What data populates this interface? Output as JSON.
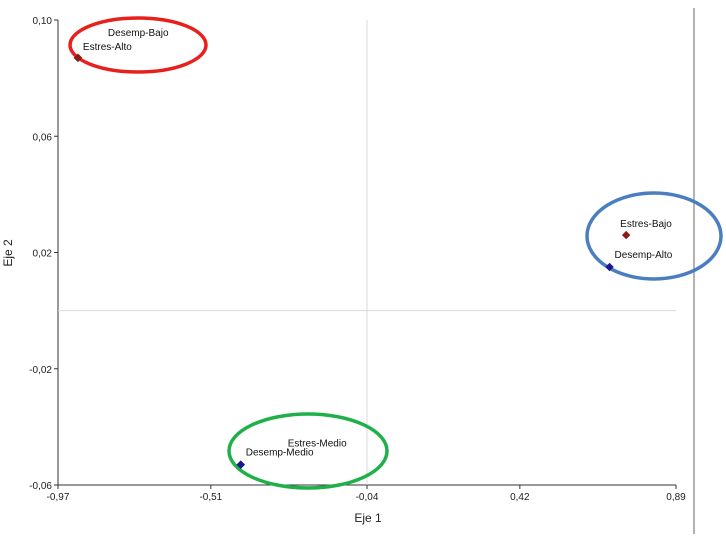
{
  "chart_data": {
    "type": "scatter",
    "xlabel": "Eje 1",
    "ylabel": "Eje 2",
    "xlim": [
      -0.97,
      0.89
    ],
    "ylim": [
      -0.06,
      0.1
    ],
    "x_ticks": [
      "-0,97",
      "-0,51",
      "-0,04",
      "0,42",
      "0,89"
    ],
    "x_tick_values": [
      -0.97,
      -0.51,
      -0.04,
      0.42,
      0.89
    ],
    "y_ticks": [
      "-0,06",
      "-0,02",
      "0,02",
      "0,06",
      "0,10"
    ],
    "y_tick_values": [
      -0.06,
      -0.02,
      0.02,
      0.06,
      0.1
    ],
    "reference_lines": {
      "x": -0.04,
      "y": 0.0
    },
    "grid": false,
    "points": [
      {
        "label": "Desemp-Bajo",
        "x": -0.91,
        "y": 0.087,
        "color": "#8B1A1A"
      },
      {
        "label": "Estres-Alto",
        "x": -0.91,
        "y": 0.087,
        "color": "#8B1A1A"
      },
      {
        "label": "Estres-Bajo",
        "x": 0.74,
        "y": 0.026,
        "color": "#8B1A1A"
      },
      {
        "label": "Desemp-Alto",
        "x": 0.69,
        "y": 0.015,
        "color": "#1a1a8c"
      },
      {
        "label": "Estres-Medio",
        "x": -0.42,
        "y": -0.053,
        "color": "#1a1a8c"
      },
      {
        "label": "Desemp-Medio",
        "x": -0.42,
        "y": -0.053,
        "color": "#1a1a8c"
      }
    ],
    "highlight_ellipses": [
      {
        "group": [
          "Desemp-Bajo",
          "Estres-Alto"
        ],
        "color": "#e8201c"
      },
      {
        "group": [
          "Estres-Bajo",
          "Desemp-Alto"
        ],
        "color": "#4a7ec0"
      },
      {
        "group": [
          "Estres-Medio",
          "Desemp-Medio"
        ],
        "color": "#20b04a"
      }
    ]
  }
}
